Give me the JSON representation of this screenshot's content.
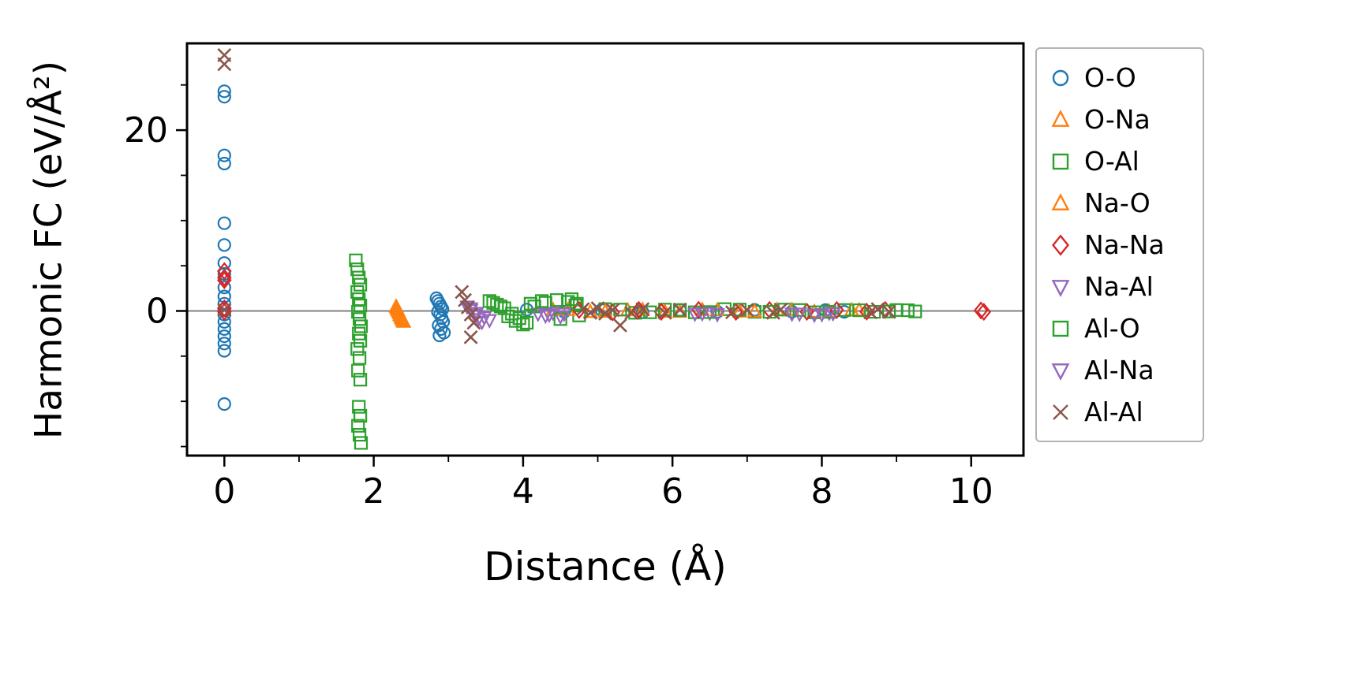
{
  "chart_data": {
    "type": "scatter",
    "title": "",
    "xlabel": "Distance (Å)",
    "ylabel": "Harmonic FC (eV/Å²)",
    "xlim": [
      -0.5,
      10.7
    ],
    "ylim": [
      -16,
      29.6
    ],
    "xticks": [
      0,
      2,
      4,
      6,
      8,
      10
    ],
    "xticks_minor": [
      1,
      3,
      5,
      7,
      9
    ],
    "yticks": [
      0,
      20
    ],
    "yticks_minor": [
      -15,
      -10,
      -5,
      5,
      10,
      15,
      25
    ],
    "grid": false,
    "zero_line": true,
    "legend_position": "outside-right",
    "colors": {
      "background": "#ffffff",
      "axis": "#000000",
      "zero_line": "#808080",
      "legend_border": "#b3b3b3"
    },
    "series": [
      {
        "name": "O-O",
        "marker": "circle",
        "color": "#1f77b4",
        "points": [
          [
            0,
            24.3
          ],
          [
            0,
            23.7
          ],
          [
            0,
            17.2
          ],
          [
            0,
            16.3
          ],
          [
            0,
            9.7
          ],
          [
            0,
            7.3
          ],
          [
            0,
            5.3
          ],
          [
            0,
            4.1
          ],
          [
            0,
            2.6
          ],
          [
            0,
            1.6
          ],
          [
            0,
            0.8
          ],
          [
            0,
            0.2
          ],
          [
            0,
            -0.4
          ],
          [
            0,
            -1.2
          ],
          [
            0,
            -2.0
          ],
          [
            0,
            -2.8
          ],
          [
            0,
            -3.6
          ],
          [
            0,
            -4.4
          ],
          [
            0,
            -10.3
          ],
          [
            2.84,
            1.4
          ],
          [
            2.86,
            1.1
          ],
          [
            2.88,
            0.8
          ],
          [
            2.9,
            0.5
          ],
          [
            2.92,
            0.2
          ],
          [
            2.86,
            -0.1
          ],
          [
            2.89,
            -0.4
          ],
          [
            2.91,
            -0.8
          ],
          [
            2.93,
            -1.2
          ],
          [
            2.87,
            -1.6
          ],
          [
            2.9,
            -2.0
          ],
          [
            2.94,
            -2.4
          ],
          [
            2.88,
            -2.7
          ],
          [
            4.05,
            0.15
          ],
          [
            4.55,
            -0.1
          ],
          [
            5.05,
            0.1
          ],
          [
            5.6,
            -0.15
          ],
          [
            6.1,
            0.1
          ],
          [
            6.6,
            -0.1
          ],
          [
            7.1,
            0.12
          ],
          [
            7.6,
            -0.08
          ],
          [
            8.05,
            0.1
          ],
          [
            8.3,
            -0.1
          ]
        ]
      },
      {
        "name": "O-Na",
        "marker": "triangle-up",
        "color": "#ff7f0e",
        "points": [
          [
            2.3,
            0.45
          ],
          [
            2.32,
            0.1
          ],
          [
            2.34,
            -0.25
          ],
          [
            2.36,
            -0.6
          ],
          [
            2.38,
            -0.95
          ],
          [
            2.4,
            -1.2
          ],
          [
            4.4,
            0.1
          ],
          [
            4.9,
            -0.12
          ],
          [
            5.4,
            0.08
          ],
          [
            5.9,
            -0.1
          ],
          [
            6.4,
            0.1
          ],
          [
            6.9,
            -0.08
          ],
          [
            7.4,
            0.1
          ],
          [
            7.9,
            -0.1
          ],
          [
            8.4,
            0.08
          ]
        ]
      },
      {
        "name": "O-Al",
        "marker": "square",
        "color": "#2ca02c",
        "points": [
          [
            1.76,
            5.6
          ],
          [
            1.78,
            4.6
          ],
          [
            1.8,
            3.7
          ],
          [
            1.82,
            2.9
          ],
          [
            1.78,
            2.1
          ],
          [
            1.8,
            1.3
          ],
          [
            1.82,
            0.6
          ],
          [
            1.79,
            -0.1
          ],
          [
            1.81,
            -0.9
          ],
          [
            1.83,
            -1.7
          ],
          [
            1.8,
            -2.5
          ],
          [
            1.82,
            -3.3
          ],
          [
            1.78,
            -4.2
          ],
          [
            1.81,
            -5.2
          ],
          [
            1.79,
            -6.6
          ],
          [
            1.82,
            -7.6
          ],
          [
            1.8,
            -10.6
          ],
          [
            1.82,
            -11.6
          ],
          [
            1.79,
            -12.7
          ],
          [
            1.81,
            -13.7
          ],
          [
            1.83,
            -14.6
          ],
          [
            3.55,
            1.1
          ],
          [
            3.65,
            0.7
          ],
          [
            3.75,
            0.3
          ],
          [
            3.85,
            -0.3
          ],
          [
            3.95,
            -0.8
          ],
          [
            4.05,
            -1.3
          ],
          [
            4.15,
            0.5
          ],
          [
            4.3,
            0.9
          ],
          [
            4.45,
            1.2
          ],
          [
            4.6,
            1.0
          ],
          [
            4.7,
            0.6
          ],
          [
            4.75,
            -0.5
          ],
          [
            5.1,
            0.2
          ],
          [
            5.5,
            -0.2
          ],
          [
            5.9,
            0.15
          ],
          [
            6.3,
            -0.15
          ],
          [
            6.7,
            0.2
          ],
          [
            7.1,
            -0.1
          ],
          [
            7.5,
            0.15
          ],
          [
            7.9,
            -0.15
          ],
          [
            8.3,
            0.1
          ],
          [
            8.7,
            -0.1
          ],
          [
            9.0,
            0.1
          ],
          [
            9.25,
            -0.05
          ]
        ]
      },
      {
        "name": "Na-O",
        "marker": "triangle-up",
        "color": "#ff7f0e",
        "points": [
          [
            2.31,
            0.3
          ],
          [
            2.33,
            -0.05
          ],
          [
            2.35,
            -0.45
          ],
          [
            2.37,
            -0.8
          ],
          [
            2.39,
            -1.1
          ],
          [
            4.6,
            0.1
          ],
          [
            5.1,
            -0.1
          ],
          [
            5.6,
            0.1
          ],
          [
            6.1,
            -0.1
          ],
          [
            6.6,
            0.08
          ],
          [
            7.1,
            -0.08
          ],
          [
            7.6,
            0.1
          ],
          [
            8.1,
            -0.08
          ],
          [
            8.5,
            0.06
          ]
        ]
      },
      {
        "name": "Na-Na",
        "marker": "diamond",
        "color": "#d62728",
        "points": [
          [
            0,
            4.4
          ],
          [
            0,
            3.7
          ],
          [
            0,
            3.4
          ],
          [
            0,
            0.3
          ],
          [
            0,
            -0.1
          ],
          [
            4.75,
            0.1
          ],
          [
            5.2,
            -0.15
          ],
          [
            5.55,
            0.1
          ],
          [
            5.85,
            -0.1
          ],
          [
            6.35,
            0.12
          ],
          [
            6.85,
            -0.1
          ],
          [
            7.3,
            0.1
          ],
          [
            7.8,
            -0.1
          ],
          [
            8.2,
            0.1
          ],
          [
            8.6,
            -0.08
          ],
          [
            8.85,
            0.1
          ],
          [
            10.13,
            0.05
          ],
          [
            10.17,
            -0.1
          ]
        ]
      },
      {
        "name": "Na-Al",
        "marker": "triangle-down",
        "color": "#9467bd",
        "points": [
          [
            3.25,
            0.5
          ],
          [
            3.3,
            0.1
          ],
          [
            3.35,
            -0.4
          ],
          [
            3.4,
            -0.9
          ],
          [
            3.45,
            -1.2
          ],
          [
            4.2,
            -0.3
          ],
          [
            4.3,
            -0.5
          ],
          [
            4.4,
            -0.2
          ],
          [
            4.5,
            -0.6
          ],
          [
            6.3,
            -0.3
          ],
          [
            6.5,
            -0.2
          ],
          [
            7.6,
            -0.3
          ],
          [
            7.9,
            -0.4
          ],
          [
            8.1,
            -0.2
          ]
        ]
      },
      {
        "name": "Al-O",
        "marker": "square",
        "color": "#2ca02c",
        "points": [
          [
            3.6,
            0.9
          ],
          [
            3.7,
            0.5
          ],
          [
            3.8,
            -0.6
          ],
          [
            3.9,
            -1.1
          ],
          [
            4.0,
            -1.5
          ],
          [
            4.1,
            0.8
          ],
          [
            4.25,
            1.1
          ],
          [
            4.5,
            -0.9
          ],
          [
            4.65,
            1.3
          ],
          [
            4.72,
            0.8
          ],
          [
            5.3,
            0.15
          ],
          [
            5.7,
            -0.15
          ],
          [
            6.1,
            0.1
          ],
          [
            6.5,
            -0.12
          ],
          [
            6.9,
            0.15
          ],
          [
            7.3,
            -0.1
          ],
          [
            7.7,
            0.1
          ],
          [
            8.1,
            -0.1
          ],
          [
            8.5,
            0.08
          ],
          [
            8.9,
            -0.06
          ],
          [
            9.15,
            0.08
          ]
        ]
      },
      {
        "name": "Al-Na",
        "marker": "triangle-down",
        "color": "#9467bd",
        "points": [
          [
            3.3,
            0.3
          ],
          [
            3.38,
            -0.2
          ],
          [
            3.48,
            -0.7
          ],
          [
            3.55,
            -1.0
          ],
          [
            4.35,
            -0.4
          ],
          [
            4.55,
            -0.3
          ],
          [
            6.4,
            -0.25
          ],
          [
            6.6,
            -0.35
          ],
          [
            7.7,
            -0.3
          ],
          [
            8.0,
            -0.35
          ],
          [
            8.15,
            -0.25
          ]
        ]
      },
      {
        "name": "Al-Al",
        "marker": "x",
        "color": "#8c564b",
        "points": [
          [
            0,
            28.3
          ],
          [
            0,
            27.3
          ],
          [
            0,
            0.1
          ],
          [
            3.18,
            2.1
          ],
          [
            3.22,
            1.2
          ],
          [
            3.26,
            0.4
          ],
          [
            3.3,
            -0.4
          ],
          [
            3.34,
            -1.3
          ],
          [
            3.3,
            -2.9
          ],
          [
            4.8,
            0.2
          ],
          [
            4.9,
            -0.2
          ],
          [
            5.0,
            0.3
          ],
          [
            5.1,
            -0.3
          ],
          [
            5.2,
            0.1
          ],
          [
            5.3,
            -1.6
          ],
          [
            5.45,
            -0.2
          ],
          [
            5.6,
            0.2
          ],
          [
            5.9,
            -0.2
          ],
          [
            6.1,
            0.15
          ],
          [
            6.8,
            -0.15
          ],
          [
            7.0,
            0.1
          ],
          [
            7.35,
            -0.2
          ],
          [
            7.45,
            0.15
          ],
          [
            8.65,
            -0.15
          ],
          [
            8.75,
            0.2
          ],
          [
            8.9,
            -0.1
          ]
        ]
      }
    ]
  }
}
